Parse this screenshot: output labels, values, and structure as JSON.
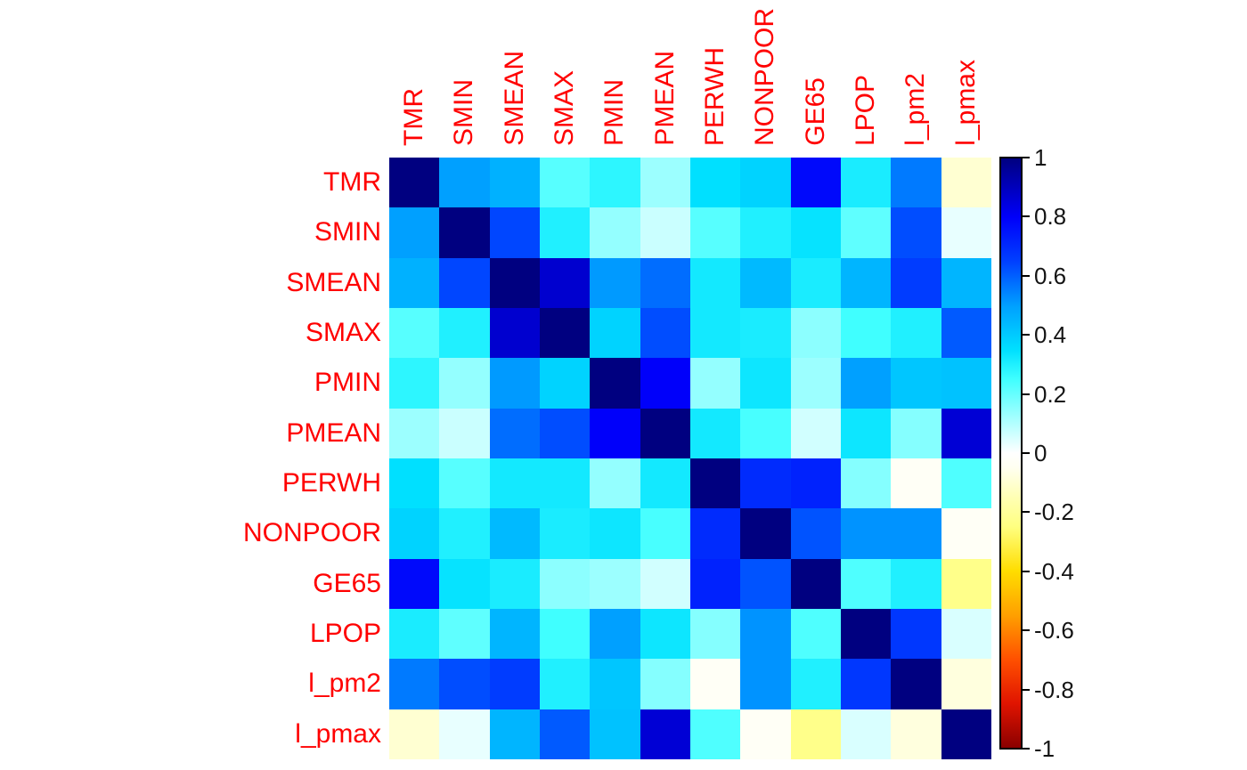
{
  "chart_data": {
    "type": "heatmap",
    "title": "",
    "description": "Correlation matrix heatmap with 12 variables, blue-white-red colormap, colorbar from -1 to 1",
    "variables": [
      "TMR",
      "SMIN",
      "SMEAN",
      "SMAX",
      "PMIN",
      "PMEAN",
      "PERWH",
      "NONPOOR",
      "GE65",
      "LPOP",
      "l_pm2",
      "l_pmax"
    ],
    "matrix": [
      [
        1.0,
        0.5,
        0.46,
        0.22,
        0.28,
        0.13,
        0.35,
        0.38,
        0.78,
        0.31,
        0.56,
        -0.1
      ],
      [
        0.5,
        1.0,
        0.64,
        0.3,
        0.14,
        0.07,
        0.22,
        0.3,
        0.34,
        0.21,
        0.63,
        0.03
      ],
      [
        0.46,
        0.64,
        1.0,
        0.87,
        0.51,
        0.58,
        0.32,
        0.44,
        0.31,
        0.45,
        0.66,
        0.45
      ],
      [
        0.22,
        0.3,
        0.87,
        1.0,
        0.38,
        0.63,
        0.32,
        0.31,
        0.15,
        0.25,
        0.3,
        0.61
      ],
      [
        0.28,
        0.14,
        0.51,
        0.38,
        1.0,
        0.8,
        0.14,
        0.33,
        0.13,
        0.5,
        0.41,
        0.42
      ],
      [
        0.13,
        0.07,
        0.58,
        0.63,
        0.8,
        1.0,
        0.32,
        0.24,
        0.06,
        0.33,
        0.16,
        0.86
      ],
      [
        0.35,
        0.22,
        0.32,
        0.32,
        0.14,
        0.32,
        1.0,
        0.7,
        0.72,
        0.16,
        -0.03,
        0.23
      ],
      [
        0.38,
        0.3,
        0.44,
        0.31,
        0.33,
        0.24,
        0.7,
        1.0,
        0.62,
        0.52,
        0.52,
        -0.03
      ],
      [
        0.78,
        0.34,
        0.31,
        0.15,
        0.13,
        0.06,
        0.72,
        0.62,
        1.0,
        0.23,
        0.3,
        -0.23
      ],
      [
        0.31,
        0.21,
        0.45,
        0.25,
        0.5,
        0.33,
        0.16,
        0.52,
        0.23,
        1.0,
        0.67,
        0.05
      ],
      [
        0.56,
        0.63,
        0.66,
        0.3,
        0.41,
        0.16,
        -0.03,
        0.52,
        0.3,
        0.67,
        1.0,
        -0.08
      ],
      [
        -0.1,
        0.03,
        0.45,
        0.61,
        0.42,
        0.86,
        0.23,
        -0.03,
        -0.23,
        0.05,
        -0.08,
        1.0
      ]
    ],
    "value_range": [
      -1,
      1
    ],
    "colorbar": {
      "position": "right",
      "tick_labels": [
        "1",
        "0.8",
        "0.6",
        "0.4",
        "0.2",
        "0",
        "-0.2",
        "-0.4",
        "-0.6",
        "-0.8",
        "-1"
      ],
      "tick_values": [
        1,
        0.8,
        0.6,
        0.4,
        0.2,
        0,
        -0.2,
        -0.4,
        -0.6,
        -0.8,
        -1
      ]
    },
    "colormap_stops": [
      {
        "v": -1.0,
        "rgb": [
          139,
          0,
          0
        ]
      },
      {
        "v": -0.85,
        "rgb": [
          224,
          20,
          0
        ]
      },
      {
        "v": -0.7,
        "rgb": [
          255,
          80,
          0
        ]
      },
      {
        "v": -0.55,
        "rgb": [
          255,
          160,
          0
        ]
      },
      {
        "v": -0.4,
        "rgb": [
          255,
          221,
          0
        ]
      },
      {
        "v": -0.25,
        "rgb": [
          255,
          255,
          128
        ]
      },
      {
        "v": -0.15,
        "rgb": [
          255,
          255,
          180
        ]
      },
      {
        "v": -0.05,
        "rgb": [
          255,
          255,
          240
        ]
      },
      {
        "v": 0.0,
        "rgb": [
          255,
          255,
          255
        ]
      },
      {
        "v": 0.25,
        "rgb": [
          64,
          255,
          255
        ]
      },
      {
        "v": 0.35,
        "rgb": [
          0,
          224,
          255
        ]
      },
      {
        "v": 0.5,
        "rgb": [
          0,
          160,
          255
        ]
      },
      {
        "v": 0.65,
        "rgb": [
          0,
          64,
          255
        ]
      },
      {
        "v": 0.8,
        "rgb": [
          0,
          0,
          250
        ]
      },
      {
        "v": 1.0,
        "rgb": [
          0,
          0,
          128
        ]
      }
    ],
    "colors": {
      "variable_label_color": "#ff0000",
      "tick_label_color": "#141414",
      "colorbar_border_color": "#000000",
      "background": "#ffffff"
    }
  }
}
